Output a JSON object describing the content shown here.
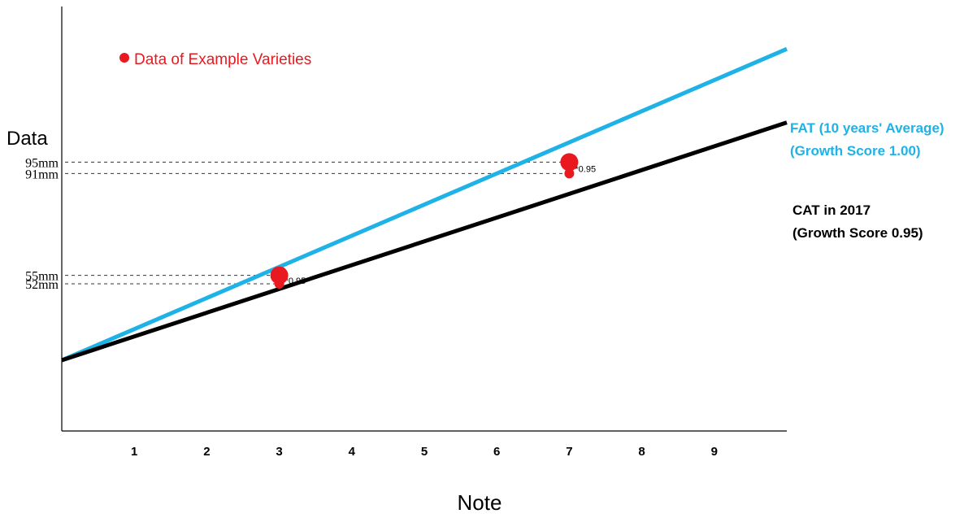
{
  "chart_data": {
    "type": "line",
    "title": "",
    "xlabel": "Note",
    "ylabel": "Data",
    "x_ticks": [
      1,
      2,
      3,
      4,
      5,
      6,
      7,
      8,
      9
    ],
    "y_ticks": [
      {
        "value": 52,
        "label": "52mm"
      },
      {
        "value": 55,
        "label": "55mm"
      },
      {
        "value": 91,
        "label": "91mm"
      },
      {
        "value": 95,
        "label": "95mm"
      }
    ],
    "legend": {
      "label": "Data of Example Varieties",
      "color": "#e8191f",
      "position": "top-left"
    },
    "series": [
      {
        "name": "FAT (10 years' Average)",
        "subtitle": "(Growth Score 1.00)",
        "color": "#1fb2e6",
        "line": [
          [
            0,
            25
          ],
          [
            10,
            135
          ]
        ],
        "highlight_points": [
          [
            3,
            55
          ],
          [
            7,
            95
          ]
        ]
      },
      {
        "name": "CAT in 2017",
        "subtitle": "(Growth Score 0.95)",
        "color": "#000000",
        "line": [
          [
            0,
            25
          ],
          [
            10,
            109
          ]
        ],
        "highlight_points": [
          [
            3,
            52
          ],
          [
            7,
            91
          ]
        ]
      }
    ],
    "annotations": [
      {
        "x": 3,
        "from": 55,
        "to": 52,
        "label": "*0.95"
      },
      {
        "x": 7,
        "from": 95,
        "to": 91,
        "label": "*0.95"
      }
    ],
    "xlim": [
      0,
      10
    ],
    "ylim": [
      0,
      150
    ],
    "grid": false
  }
}
